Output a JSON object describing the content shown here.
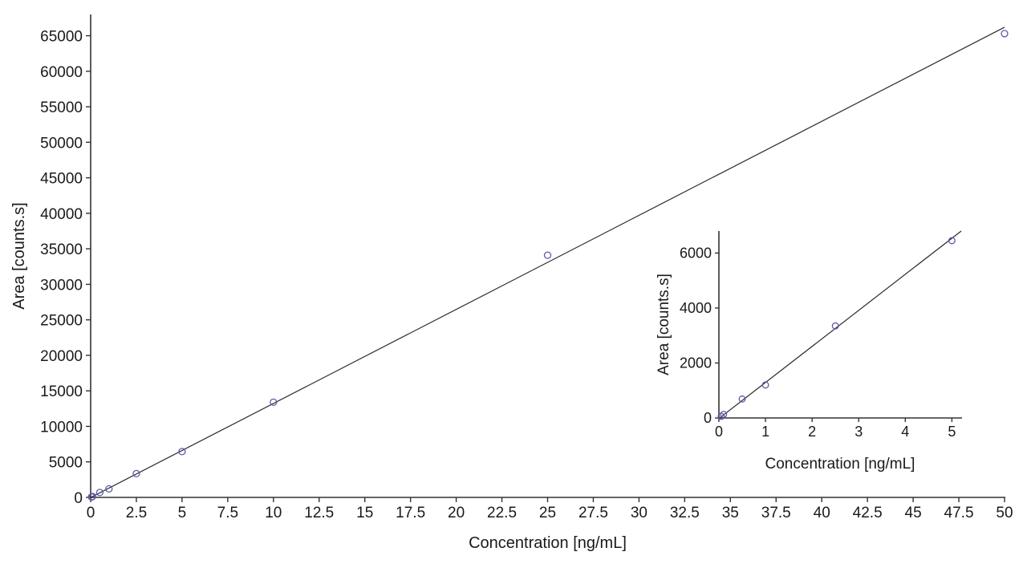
{
  "chart_data": [
    {
      "type": "scatter",
      "xlabel": "Concentration [ng/mL]",
      "ylabel": "Area [counts.s]",
      "xlim": [
        0,
        50
      ],
      "ylim": [
        0,
        68000
      ],
      "x_ticks": [
        0,
        2.5,
        5,
        7.5,
        10,
        12.5,
        15,
        17.5,
        20,
        22.5,
        25,
        27.5,
        30,
        32.5,
        35,
        37.5,
        40,
        42.5,
        45,
        47.5,
        50
      ],
      "x_tick_labels": [
        "0",
        "2.5",
        "5",
        "7.5",
        "10",
        "12.5",
        "15",
        "17.5",
        "20",
        "22.5",
        "25",
        "27.5",
        "30",
        "32.5",
        "35",
        "37.5",
        "40",
        "42.5",
        "45",
        "47.5",
        "50"
      ],
      "y_ticks": [
        0,
        5000,
        10000,
        15000,
        20000,
        25000,
        30000,
        35000,
        40000,
        45000,
        50000,
        55000,
        60000,
        65000
      ],
      "y_tick_labels": [
        "0",
        "5000",
        "10000",
        "15000",
        "20000",
        "25000",
        "30000",
        "35000",
        "40000",
        "45000",
        "50000",
        "55000",
        "60000",
        "65000"
      ],
      "points": [
        {
          "x": 0.05,
          "y": 60
        },
        {
          "x": 0.1,
          "y": 130
        },
        {
          "x": 0.5,
          "y": 690
        },
        {
          "x": 1,
          "y": 1200
        },
        {
          "x": 2.5,
          "y": 3350
        },
        {
          "x": 5,
          "y": 6450
        },
        {
          "x": 10,
          "y": 13400
        },
        {
          "x": 25,
          "y": 34100
        },
        {
          "x": 50,
          "y": 65300
        }
      ],
      "fit_line": {
        "x": [
          0,
          50
        ],
        "y": [
          -20,
          66200
        ]
      },
      "grid": false,
      "marker": "open-circle",
      "colors": {
        "marker": "#5a5aa8",
        "line": "#2b2b2b",
        "axis": "#333333"
      }
    },
    {
      "type": "scatter",
      "xlabel": "Concentration [ng/mL]",
      "ylabel": "Area [counts.s]",
      "xlim": [
        0,
        5.2
      ],
      "ylim": [
        0,
        6800
      ],
      "x_ticks": [
        0,
        1,
        2,
        3,
        4,
        5
      ],
      "x_tick_labels": [
        "0",
        "1",
        "2",
        "3",
        "4",
        "5"
      ],
      "y_ticks": [
        0,
        2000,
        4000,
        6000
      ],
      "y_tick_labels": [
        "0",
        "2000",
        "4000",
        "6000"
      ],
      "points": [
        {
          "x": 0.05,
          "y": 60
        },
        {
          "x": 0.1,
          "y": 130
        },
        {
          "x": 0.5,
          "y": 690
        },
        {
          "x": 1,
          "y": 1200
        },
        {
          "x": 2.5,
          "y": 3350
        },
        {
          "x": 5,
          "y": 6450
        }
      ],
      "fit_line": {
        "x": [
          0,
          5.2
        ],
        "y": [
          -20,
          6800
        ]
      },
      "grid": false,
      "placement": "inset, lower-right",
      "marker": "open-circle",
      "colors": {
        "marker": "#5a5aa8",
        "line": "#2b2b2b",
        "axis": "#333333"
      }
    }
  ]
}
